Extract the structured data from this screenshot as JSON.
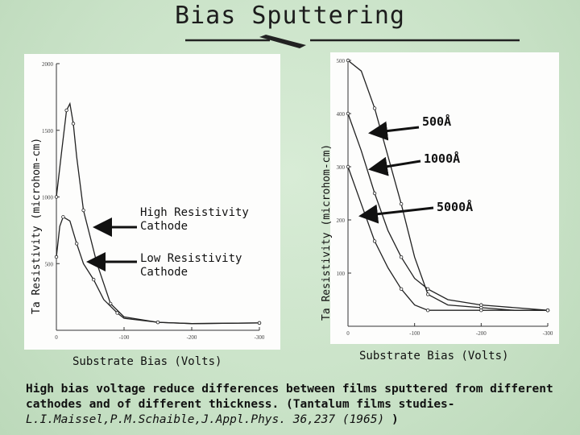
{
  "slide": {
    "title": "Bias Sputtering",
    "caption_main": "High bias voltage reduce differences between films sputtered from different cathodes and of different thickness. (Tantalum films studies-",
    "caption_ref": "L.I.Maissel,P.M.Schaible,J.Appl.Phys. 36,237 (1965)",
    "caption_end": ")"
  },
  "chart_data": [
    {
      "type": "line",
      "title": "",
      "xlabel": "Substrate Bias (Volts)",
      "ylabel": "Ta Resistivity (microhom-cm)",
      "xlim": [
        0,
        -300
      ],
      "ylim": [
        0,
        2000
      ],
      "x_ticks": [
        "0",
        "-100",
        "-200",
        "-300"
      ],
      "y_ticks": [
        "500",
        "1000",
        "1500",
        "2000"
      ],
      "grid": false,
      "annotations": [
        "High Resistivity\nCathode",
        "Low Resistivity\nCathode"
      ],
      "series": [
        {
          "x": [
            0,
            -8,
            -15,
            -20,
            -25,
            -30,
            -40,
            -60,
            -80,
            -100,
            -150,
            -200,
            -300
          ],
          "values": [
            1000,
            1350,
            1650,
            1700,
            1550,
            1300,
            900,
            500,
            200,
            100,
            60,
            50,
            55
          ]
        },
        {
          "x": [
            0,
            -5,
            -10,
            -20,
            -30,
            -40,
            -55,
            -70,
            -90,
            -100,
            -150,
            -200,
            -300
          ],
          "values": [
            550,
            780,
            850,
            820,
            650,
            500,
            380,
            230,
            130,
            90,
            60,
            50,
            55
          ]
        }
      ]
    },
    {
      "type": "line",
      "title": "",
      "xlabel": "Substrate Bias (Volts)",
      "ylabel": "Ta Resistivity (microhom-cm)",
      "xlim": [
        0,
        -300
      ],
      "ylim": [
        0,
        500
      ],
      "x_ticks": [
        "0",
        "-100",
        "-200",
        "-300"
      ],
      "y_ticks": [
        "100",
        "200",
        "300",
        "400",
        "500"
      ],
      "grid": false,
      "annotations": [
        "500Å",
        "1000Å",
        "5000Å"
      ],
      "series": [
        {
          "x": [
            0,
            -20,
            -40,
            -60,
            -80,
            -100,
            -120,
            -150,
            -200,
            -250,
            -300
          ],
          "values": [
            500,
            480,
            410,
            320,
            230,
            130,
            60,
            40,
            35,
            30,
            30
          ]
        },
        {
          "x": [
            0,
            -20,
            -40,
            -60,
            -80,
            -100,
            -120,
            -150,
            -200,
            -250,
            -300
          ],
          "values": [
            400,
            330,
            250,
            180,
            130,
            90,
            70,
            50,
            40,
            35,
            30
          ]
        },
        {
          "x": [
            0,
            -20,
            -40,
            -60,
            -80,
            -100,
            -120,
            -150,
            -200,
            -250,
            -300
          ],
          "values": [
            300,
            230,
            160,
            110,
            70,
            40,
            30,
            30,
            30,
            30,
            30
          ]
        }
      ]
    }
  ]
}
